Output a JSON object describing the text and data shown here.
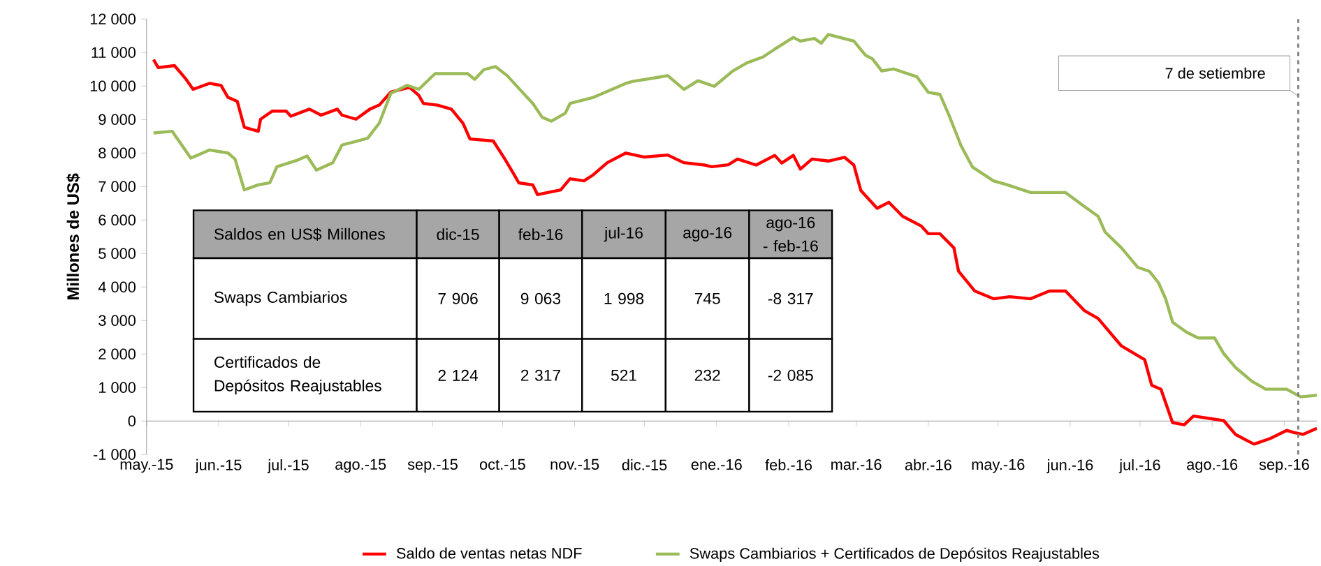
{
  "chart_data": {
    "type": "line",
    "ylabel": "Millones de US$",
    "xlim": [
      "2015-05-01",
      "2016-09-15"
    ],
    "ylim": [
      -1000,
      12000
    ],
    "xticks": [
      {
        "value": "2015-05",
        "label": "may.-15"
      },
      {
        "value": "2015-06",
        "label": "jun.-15"
      },
      {
        "value": "2015-07",
        "label": "jul.-15"
      },
      {
        "value": "2015-08",
        "label": "ago.-15"
      },
      {
        "value": "2015-09",
        "label": "sep.-15"
      },
      {
        "value": "2015-10",
        "label": "oct.-15"
      },
      {
        "value": "2015-11",
        "label": "nov.-15"
      },
      {
        "value": "2015-12",
        "label": "dic.-15"
      },
      {
        "value": "2016-01",
        "label": "ene.-16"
      },
      {
        "value": "2016-02",
        "label": "feb.-16"
      },
      {
        "value": "2016-03",
        "label": "mar.-16"
      },
      {
        "value": "2016-04",
        "label": "abr.-16"
      },
      {
        "value": "2016-05",
        "label": "may.-16"
      },
      {
        "value": "2016-06",
        "label": "jun.-16"
      },
      {
        "value": "2016-07",
        "label": "jul.-16"
      },
      {
        "value": "2016-08",
        "label": "ago.-16"
      },
      {
        "value": "2016-09",
        "label": "sep.-16"
      }
    ],
    "yticks": [
      {
        "value": -1000,
        "label": "-1 000"
      },
      {
        "value": 0,
        "label": "0"
      },
      {
        "value": 1000,
        "label": "1 000"
      },
      {
        "value": 2000,
        "label": "2 000"
      },
      {
        "value": 3000,
        "label": "3 000"
      },
      {
        "value": 4000,
        "label": "4 000"
      },
      {
        "value": 5000,
        "label": "5 000"
      },
      {
        "value": 6000,
        "label": "6 000"
      },
      {
        "value": 7000,
        "label": "7 000"
      },
      {
        "value": 8000,
        "label": "8 000"
      },
      {
        "value": 9000,
        "label": "9 000"
      },
      {
        "value": 10000,
        "label": "10 000"
      },
      {
        "value": 11000,
        "label": "11 000"
      },
      {
        "value": 12000,
        "label": "12 000"
      }
    ],
    "series": [
      {
        "name": "Saldo de ventas netas NDF",
        "color": "#ff0000",
        "x": [
          "2015-05-04",
          "2015-05-06",
          "2015-05-13",
          "2015-05-18",
          "2015-05-21",
          "2015-05-28",
          "2015-06-02",
          "2015-06-05",
          "2015-06-09",
          "2015-06-12",
          "2015-06-18",
          "2015-06-19",
          "2015-06-24",
          "2015-06-30",
          "2015-07-02",
          "2015-07-10",
          "2015-07-15",
          "2015-07-22",
          "2015-07-24",
          "2015-07-30",
          "2015-08-05",
          "2015-08-09",
          "2015-08-14",
          "2015-08-22",
          "2015-08-26",
          "2015-08-28",
          "2015-09-03",
          "2015-09-09",
          "2015-09-14",
          "2015-09-17",
          "2015-09-27",
          "2015-10-02",
          "2015-10-06",
          "2015-10-08",
          "2015-10-14",
          "2015-10-16",
          "2015-10-26",
          "2015-10-30",
          "2015-11-05",
          "2015-11-09",
          "2015-11-15",
          "2015-11-23",
          "2015-12-01",
          "2015-12-11",
          "2015-12-18",
          "2015-12-27",
          "2015-12-30",
          "2016-01-06",
          "2016-01-10",
          "2016-01-18",
          "2016-01-26",
          "2016-01-29",
          "2016-02-03",
          "2016-02-06",
          "2016-02-11",
          "2016-02-18",
          "2016-02-25",
          "2016-02-29",
          "2016-03-03",
          "2016-03-10",
          "2016-03-15",
          "2016-03-21",
          "2016-03-29",
          "2016-04-01",
          "2016-04-06",
          "2016-04-12",
          "2016-04-14",
          "2016-04-21",
          "2016-04-29",
          "2016-05-06",
          "2016-05-15",
          "2016-05-23",
          "2016-05-30",
          "2016-06-07",
          "2016-06-13",
          "2016-06-23",
          "2016-07-03",
          "2016-07-06",
          "2016-07-10",
          "2016-07-15",
          "2016-07-20",
          "2016-07-24",
          "2016-08-06",
          "2016-08-11",
          "2016-08-19",
          "2016-08-26",
          "2016-09-02",
          "2016-09-05",
          "2016-09-09",
          "2016-09-15"
        ],
        "values": [
          10790,
          10550,
          10610,
          10200,
          9900,
          10080,
          10020,
          9660,
          9540,
          8770,
          8650,
          9010,
          9250,
          9250,
          9100,
          9310,
          9130,
          9310,
          9130,
          9010,
          9310,
          9430,
          9820,
          9960,
          9720,
          9480,
          9430,
          9310,
          8890,
          8420,
          8360,
          7820,
          7350,
          7110,
          7050,
          6760,
          6900,
          7230,
          7170,
          7350,
          7710,
          8000,
          7880,
          7940,
          7710,
          7640,
          7590,
          7650,
          7820,
          7640,
          7930,
          7700,
          7930,
          7520,
          7820,
          7760,
          7870,
          7640,
          6880,
          6350,
          6530,
          6110,
          5820,
          5590,
          5590,
          5170,
          4470,
          3880,
          3650,
          3710,
          3650,
          3880,
          3880,
          3300,
          3060,
          2240,
          1830,
          1070,
          950,
          -50,
          -110,
          150,
          10,
          -400,
          -690,
          -520,
          -280,
          -340,
          -400,
          -220
        ]
      },
      {
        "name": "Swaps Cambiarios + Certificados de Depósitos Reajustables",
        "color": "#9bbb59",
        "x": [
          "2015-05-04",
          "2015-05-12",
          "2015-05-20",
          "2015-05-28",
          "2015-06-05",
          "2015-06-08",
          "2015-06-12",
          "2015-06-18",
          "2015-06-23",
          "2015-06-26",
          "2015-07-05",
          "2015-07-09",
          "2015-07-13",
          "2015-07-20",
          "2015-07-24",
          "2015-08-04",
          "2015-08-09",
          "2015-08-14",
          "2015-08-21",
          "2015-08-26",
          "2015-09-02",
          "2015-09-16",
          "2015-09-19",
          "2015-09-23",
          "2015-09-28",
          "2015-10-03",
          "2015-10-14",
          "2015-10-18",
          "2015-10-22",
          "2015-10-28",
          "2015-10-30",
          "2015-11-09",
          "2015-11-15",
          "2015-11-23",
          "2015-11-26",
          "2015-12-06",
          "2015-12-11",
          "2015-12-18",
          "2015-12-24",
          "2015-12-31",
          "2016-01-08",
          "2016-01-14",
          "2016-01-21",
          "2016-01-26",
          "2016-02-03",
          "2016-02-06",
          "2016-02-12",
          "2016-02-15",
          "2016-02-18",
          "2016-02-29",
          "2016-03-05",
          "2016-03-08",
          "2016-03-12",
          "2016-03-17",
          "2016-03-27",
          "2016-04-01",
          "2016-04-06",
          "2016-04-10",
          "2016-04-15",
          "2016-04-20",
          "2016-04-29",
          "2016-05-05",
          "2016-05-15",
          "2016-05-23",
          "2016-05-30",
          "2016-06-06",
          "2016-06-13",
          "2016-06-16",
          "2016-06-23",
          "2016-06-30",
          "2016-07-05",
          "2016-07-09",
          "2016-07-12",
          "2016-07-15",
          "2016-07-21",
          "2016-07-26",
          "2016-08-02",
          "2016-08-06",
          "2016-08-11",
          "2016-08-18",
          "2016-08-24",
          "2016-09-02",
          "2016-09-08",
          "2016-09-15"
        ],
        "values": [
          8600,
          8650,
          7850,
          8090,
          8000,
          7820,
          6900,
          7050,
          7110,
          7590,
          7790,
          7910,
          7490,
          7710,
          8240,
          8440,
          8890,
          9780,
          10020,
          9900,
          10370,
          10370,
          10200,
          10490,
          10580,
          10310,
          9480,
          9070,
          8950,
          9190,
          9480,
          9660,
          9840,
          10080,
          10140,
          10250,
          10310,
          9900,
          10160,
          9990,
          10450,
          10690,
          10870,
          11100,
          11450,
          11340,
          11420,
          11280,
          11540,
          11340,
          10920,
          10810,
          10450,
          10510,
          10280,
          9810,
          9750,
          9110,
          8230,
          7580,
          7170,
          7050,
          6820,
          6820,
          6820,
          6460,
          6110,
          5640,
          5170,
          4590,
          4470,
          4120,
          3650,
          2950,
          2650,
          2480,
          2480,
          2010,
          1600,
          1190,
          950,
          950,
          720,
          770
        ]
      }
    ],
    "ref_lines": [
      {
        "axis": "x",
        "value": "2016-09-07",
        "label": "7 de setiembre",
        "color": "#808080",
        "line_style": "dashed"
      }
    ],
    "annotations": [
      "Saldos en US$ Millones",
      "dic-15",
      "feb-16",
      "jul-16",
      "ago-16",
      "ago-16 - feb-16",
      "Swaps Cambiarios",
      "7 906",
      "9 063",
      "1 998",
      "745",
      "-8 317",
      "Certificados de Depósitos Reajustables",
      "2 124",
      "2 317",
      "521",
      "232",
      "-2 085"
    ],
    "legend": "bottom",
    "grid": false,
    "marker": "none",
    "line_style": "solid"
  }
}
